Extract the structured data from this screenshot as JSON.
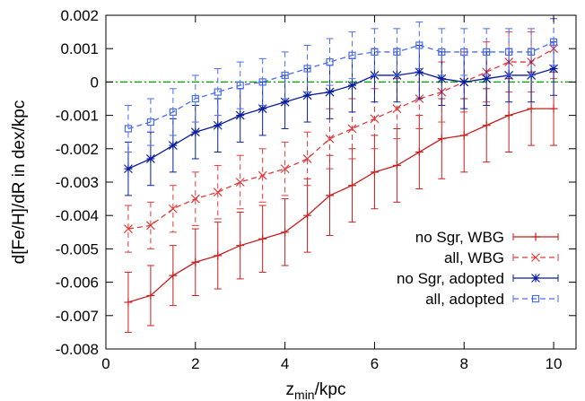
{
  "chart_data": {
    "type": "line",
    "xlabel": "z",
    "xlabel_sub": "min",
    "xlabel_suffix": "/kpc",
    "ylabel": "d[Fe/H]/dR in dex/kpc",
    "xlim": [
      0,
      10.5
    ],
    "ylim": [
      -0.008,
      0.002
    ],
    "xticks": [
      0,
      2,
      4,
      6,
      8,
      10
    ],
    "yticks": [
      -0.008,
      -0.007,
      -0.006,
      -0.005,
      -0.004,
      -0.003,
      -0.002,
      -0.001,
      0,
      0.001,
      0.002
    ],
    "xtick_labels": [
      "0",
      "2",
      "4",
      "6",
      "8",
      "10"
    ],
    "ytick_labels": [
      "-0.008",
      "-0.007",
      "-0.006",
      "-0.005",
      "-0.004",
      "-0.003",
      "-0.002",
      "-0.001",
      "0",
      "0.001",
      "0.002"
    ],
    "reference_line": {
      "y": 0,
      "color": "#00a000"
    },
    "legend_position": "bottom-right",
    "x": [
      0.5,
      1.0,
      1.5,
      2.0,
      2.5,
      3.0,
      3.5,
      4.0,
      4.5,
      5.0,
      5.5,
      6.0,
      6.5,
      7.0,
      7.5,
      8.0,
      8.5,
      9.0,
      9.5,
      10.0
    ],
    "series": [
      {
        "name": "no Sgr, WBG",
        "color": "#c81e1e",
        "dash": "solid",
        "marker": "plus",
        "values": [
          -0.0066,
          -0.0064,
          -0.0058,
          -0.0054,
          -0.0052,
          -0.0049,
          -0.0047,
          -0.0045,
          -0.004,
          -0.0034,
          -0.0031,
          -0.0027,
          -0.0025,
          -0.0021,
          -0.0017,
          -0.0016,
          -0.0013,
          -0.001,
          -0.0008,
          -0.0008
        ],
        "errors": [
          0.0009,
          0.0009,
          0.0009,
          0.001,
          0.001,
          0.001,
          0.001,
          0.001,
          0.0011,
          0.0012,
          0.0011,
          0.0011,
          0.0011,
          0.0011,
          0.0012,
          0.0011,
          0.0011,
          0.0011,
          0.0011,
          0.0011
        ]
      },
      {
        "name": "all, WBG",
        "color": "#e03a3a",
        "dash": "dashed",
        "marker": "cross",
        "values": [
          -0.0044,
          -0.0043,
          -0.0038,
          -0.0035,
          -0.0033,
          -0.003,
          -0.0028,
          -0.0026,
          -0.0023,
          -0.0017,
          -0.0014,
          -0.0011,
          -0.0008,
          -0.0005,
          -0.0003,
          0.0,
          0.0003,
          0.0006,
          0.0006,
          0.001
        ],
        "errors": [
          0.0007,
          0.0007,
          0.0007,
          0.0008,
          0.0008,
          0.0008,
          0.0008,
          0.0008,
          0.0008,
          0.0009,
          0.0009,
          0.0009,
          0.0009,
          0.0009,
          0.0009,
          0.0009,
          0.0009,
          0.0009,
          0.0009,
          0.0009
        ]
      },
      {
        "name": "no Sgr, adopted",
        "color": "#0a1e9c",
        "dash": "solid",
        "marker": "star",
        "values": [
          -0.0026,
          -0.0023,
          -0.0019,
          -0.0015,
          -0.0013,
          -0.001,
          -0.0008,
          -0.0006,
          -0.0004,
          -0.0003,
          -0.0001,
          0.0002,
          0.0002,
          0.0003,
          0.0001,
          0.0,
          0.0001,
          0.0002,
          0.0002,
          0.0004
        ],
        "errors": [
          0.0008,
          0.0008,
          0.0008,
          0.0008,
          0.0008,
          0.0008,
          0.0008,
          0.0008,
          0.0008,
          0.0008,
          0.0008,
          0.0008,
          0.0008,
          0.0008,
          0.0008,
          0.0008,
          0.0008,
          0.0008,
          0.0008,
          0.0008
        ]
      },
      {
        "name": "all, adopted",
        "color": "#4a6cf0",
        "dash": "dashed",
        "marker": "square",
        "values": [
          -0.0014,
          -0.0012,
          -0.0009,
          -0.0005,
          -0.0003,
          -0.0001,
          0.0,
          0.0002,
          0.0004,
          0.0006,
          0.0008,
          0.0009,
          0.0009,
          0.0011,
          0.0009,
          0.0009,
          0.0009,
          0.0009,
          0.0009,
          0.0012
        ],
        "errors": [
          0.0007,
          0.0007,
          0.0007,
          0.0007,
          0.0007,
          0.0007,
          0.0007,
          0.0007,
          0.0007,
          0.0007,
          0.0007,
          0.0007,
          0.0007,
          0.0007,
          0.0007,
          0.0007,
          0.0007,
          0.0007,
          0.0007,
          0.0007
        ]
      }
    ]
  }
}
